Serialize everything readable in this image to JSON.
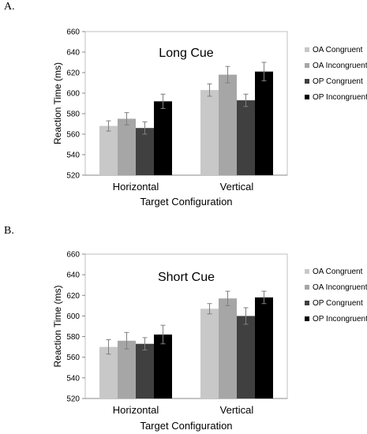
{
  "chart_data": [
    {
      "panel_label": "A.",
      "type": "bar",
      "title": "Long Cue",
      "xlabel": "Target Configuration",
      "ylabel": "Reaction Time (ms)",
      "ylim": [
        520,
        660
      ],
      "yticks": [
        520,
        540,
        560,
        580,
        600,
        620,
        640,
        660
      ],
      "categories": [
        "Horizontal",
        "Vertical"
      ],
      "legend_position": "right",
      "series": [
        {
          "name": "OA Congruent",
          "color": "#c8c8c8",
          "values": [
            568,
            603
          ],
          "errors": [
            5,
            6
          ]
        },
        {
          "name": "OA Incongruent",
          "color": "#a6a6a6",
          "values": [
            575,
            618
          ],
          "errors": [
            6,
            8
          ]
        },
        {
          "name": "OP Congruent",
          "color": "#404040",
          "values": [
            566,
            593
          ],
          "errors": [
            6,
            6
          ]
        },
        {
          "name": "OP Incongruent",
          "color": "#000000",
          "values": [
            592,
            621
          ],
          "errors": [
            7,
            9
          ]
        }
      ]
    },
    {
      "panel_label": "B.",
      "type": "bar",
      "title": "Short Cue",
      "xlabel": "Target Configuration",
      "ylabel": "Reaction Time (ms)",
      "ylim": [
        520,
        660
      ],
      "yticks": [
        520,
        540,
        560,
        580,
        600,
        620,
        640,
        660
      ],
      "categories": [
        "Horizontal",
        "Vertical"
      ],
      "legend_position": "right",
      "series": [
        {
          "name": "OA Congruent",
          "color": "#c8c8c8",
          "values": [
            570,
            607
          ],
          "errors": [
            7,
            5
          ]
        },
        {
          "name": "OA Incongruent",
          "color": "#a6a6a6",
          "values": [
            576,
            617
          ],
          "errors": [
            8,
            7
          ]
        },
        {
          "name": "OP Congruent",
          "color": "#404040",
          "values": [
            573,
            600
          ],
          "errors": [
            6,
            8
          ]
        },
        {
          "name": "OP Incongruent",
          "color": "#000000",
          "values": [
            582,
            618
          ],
          "errors": [
            9,
            6
          ]
        }
      ]
    }
  ]
}
